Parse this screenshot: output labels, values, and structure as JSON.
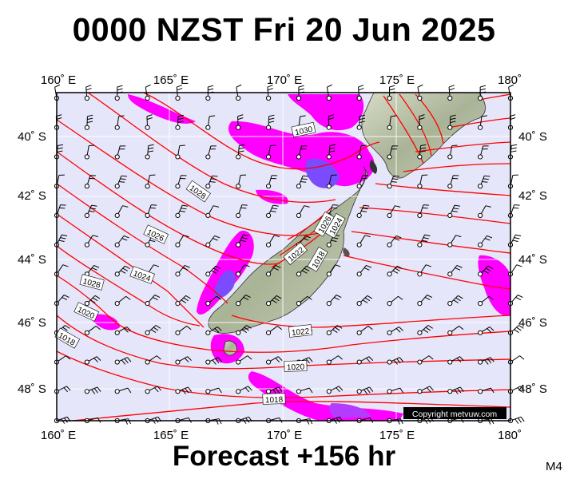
{
  "title": "0000 NZST Fri 20 Jun 2025",
  "footer": "Forecast +156 hr",
  "model_code": "M4",
  "copyright": "Copyright metvuw.com",
  "longitude_labels": [
    "160˚ E",
    "165˚ E",
    "170˚ E",
    "175˚ E",
    "180˚"
  ],
  "latitude_labels_left": [
    "40˚ S",
    "42˚ S",
    "44˚ S",
    "46˚ S",
    "48˚ S"
  ],
  "latitude_labels_right": [
    "40˚ S",
    "42˚ S",
    "44˚ S",
    "46˚ S",
    "48˚ S"
  ],
  "isobar_labels": [
    "1030",
    "1028",
    "1026",
    "1024",
    "1022",
    "1020",
    "1018",
    "1028",
    "1020",
    "1018",
    "1018",
    "1026",
    "1024",
    "1022",
    "1020"
  ],
  "map_extent": {
    "lon": [
      160,
      180
    ],
    "lat": [
      -49,
      -38.5
    ]
  },
  "colors": {
    "ocean": "#e6e6fa",
    "isobar": "#ff0000",
    "rain_light": "#ff00ff",
    "rain_heavy": "#6a3cff",
    "land": "#b9c2a6",
    "wind": "#000000"
  },
  "icons": [
    "wind-barb-icon",
    "station-circle-icon"
  ]
}
